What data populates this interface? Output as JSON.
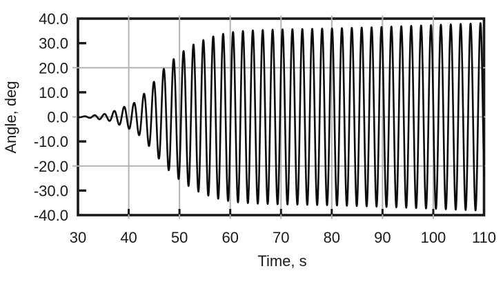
{
  "chart_data": {
    "type": "line",
    "title": "",
    "xlabel": "Time, s",
    "ylabel": "Angle, deg",
    "xlim": [
      30,
      110
    ],
    "ylim": [
      -40,
      40
    ],
    "x_ticks": [
      {
        "value": 30,
        "label": "30"
      },
      {
        "value": 40,
        "label": "40"
      },
      {
        "value": 50,
        "label": "50"
      },
      {
        "value": 60,
        "label": "60"
      },
      {
        "value": 70,
        "label": "70"
      },
      {
        "value": 80,
        "label": "80"
      },
      {
        "value": 90,
        "label": "90"
      },
      {
        "value": 100,
        "label": "100"
      },
      {
        "value": 110,
        "label": "110"
      }
    ],
    "y_ticks": [
      {
        "value": 40,
        "label": "40.0"
      },
      {
        "value": 30,
        "label": "30.0"
      },
      {
        "value": 20,
        "label": "20.0"
      },
      {
        "value": 10,
        "label": "10.0"
      },
      {
        "value": 0,
        "label": "0.0"
      },
      {
        "value": -10,
        "label": "-10.0"
      },
      {
        "value": -20,
        "label": "-20.0"
      },
      {
        "value": -30,
        "label": "-30.0"
      },
      {
        "value": -40,
        "label": "-40.0"
      }
    ],
    "x_gridlines": [
      40,
      50,
      60,
      70,
      80,
      90,
      100
    ],
    "y_gridlines": [
      20,
      0,
      -20
    ],
    "y_minor_black_ticks": [
      30,
      10,
      -10,
      -30
    ],
    "grid": true,
    "legend": "none",
    "colors": {
      "line": "#0d0d0d",
      "grid": "#b2b2b2",
      "frame": "#1a1a1a",
      "background": "#ffffff"
    },
    "series": [
      {
        "name": "angle",
        "model": "sine_with_envelope",
        "description": "Wing-rock style limit-cycle oscillation: near-zero until ~33 s, amplitude grows rapidly 40-60 s, saturates near 35-38 deg",
        "period_s": 1.95,
        "peak_reference_time_s": 41.05,
        "sample_step_s": 0.025,
        "envelope_deg": [
          [
            30,
            0.12
          ],
          [
            31,
            0.2
          ],
          [
            32,
            0.35
          ],
          [
            33,
            0.6
          ],
          [
            34,
            0.95
          ],
          [
            35,
            1.1
          ],
          [
            36,
            1.5
          ],
          [
            37,
            2.3
          ],
          [
            38,
            3.1
          ],
          [
            39,
            4.0
          ],
          [
            40,
            4.8
          ],
          [
            41,
            5.6
          ],
          [
            42,
            7.4
          ],
          [
            43,
            9.4
          ],
          [
            44,
            11.9
          ],
          [
            45,
            14.4
          ],
          [
            46,
            17.2
          ],
          [
            47,
            19.8
          ],
          [
            48,
            22.0
          ],
          [
            49,
            23.8
          ],
          [
            50,
            25.6
          ],
          [
            51,
            27.1
          ],
          [
            52,
            28.4
          ],
          [
            53,
            29.8
          ],
          [
            54,
            30.7
          ],
          [
            55,
            31.5
          ],
          [
            56,
            32.3
          ],
          [
            57,
            33.0
          ],
          [
            58,
            33.5
          ],
          [
            59,
            34.0
          ],
          [
            60,
            34.4
          ],
          [
            62,
            34.9
          ],
          [
            65,
            35.3
          ],
          [
            70,
            35.6
          ],
          [
            75,
            35.8
          ],
          [
            80,
            36.0
          ],
          [
            85,
            36.3
          ],
          [
            90,
            36.6
          ],
          [
            95,
            37.0
          ],
          [
            100,
            37.4
          ],
          [
            105,
            37.8
          ],
          [
            110,
            38.2
          ]
        ]
      }
    ]
  }
}
